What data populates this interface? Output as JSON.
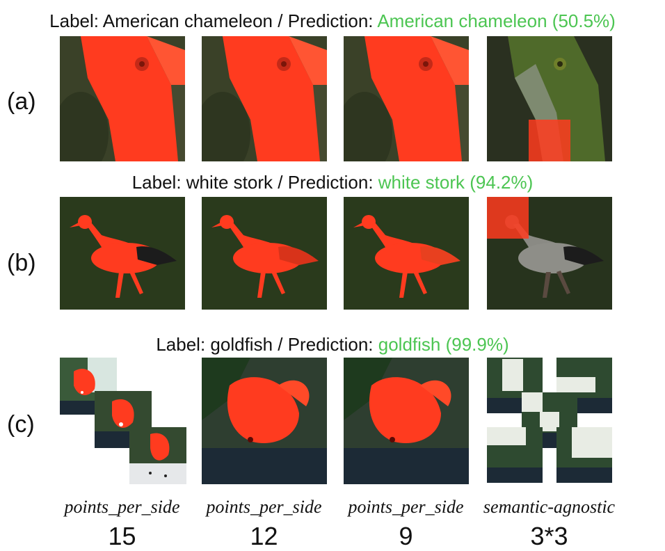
{
  "rows": [
    {
      "id": "a",
      "label_prefix": "Label: American chameleon / Prediction: ",
      "prediction": "American chameleon (50.5%)",
      "row_label": "(a)"
    },
    {
      "id": "b",
      "label_prefix": "Label: white stork / Prediction: ",
      "prediction": "white stork (94.2%)",
      "row_label": "(b)"
    },
    {
      "id": "c",
      "label_prefix": "Label: goldfish / Prediction: ",
      "prediction": "goldfish (99.9%)",
      "row_label": "(c)"
    }
  ],
  "columns": [
    {
      "method": "points_per_side",
      "value": "15"
    },
    {
      "method": "points_per_side",
      "value": "12"
    },
    {
      "method": "points_per_side",
      "value": "9"
    },
    {
      "method": "semantic-agnostic",
      "value": "3*3"
    }
  ],
  "colors": {
    "prediction_green": "#4cc552",
    "mask_red": "#ff3b1f",
    "dark_green_bg": "#2f3a25",
    "stork_grass": "#2a3a1c",
    "aquarium_dark": "#1c2a2c"
  }
}
